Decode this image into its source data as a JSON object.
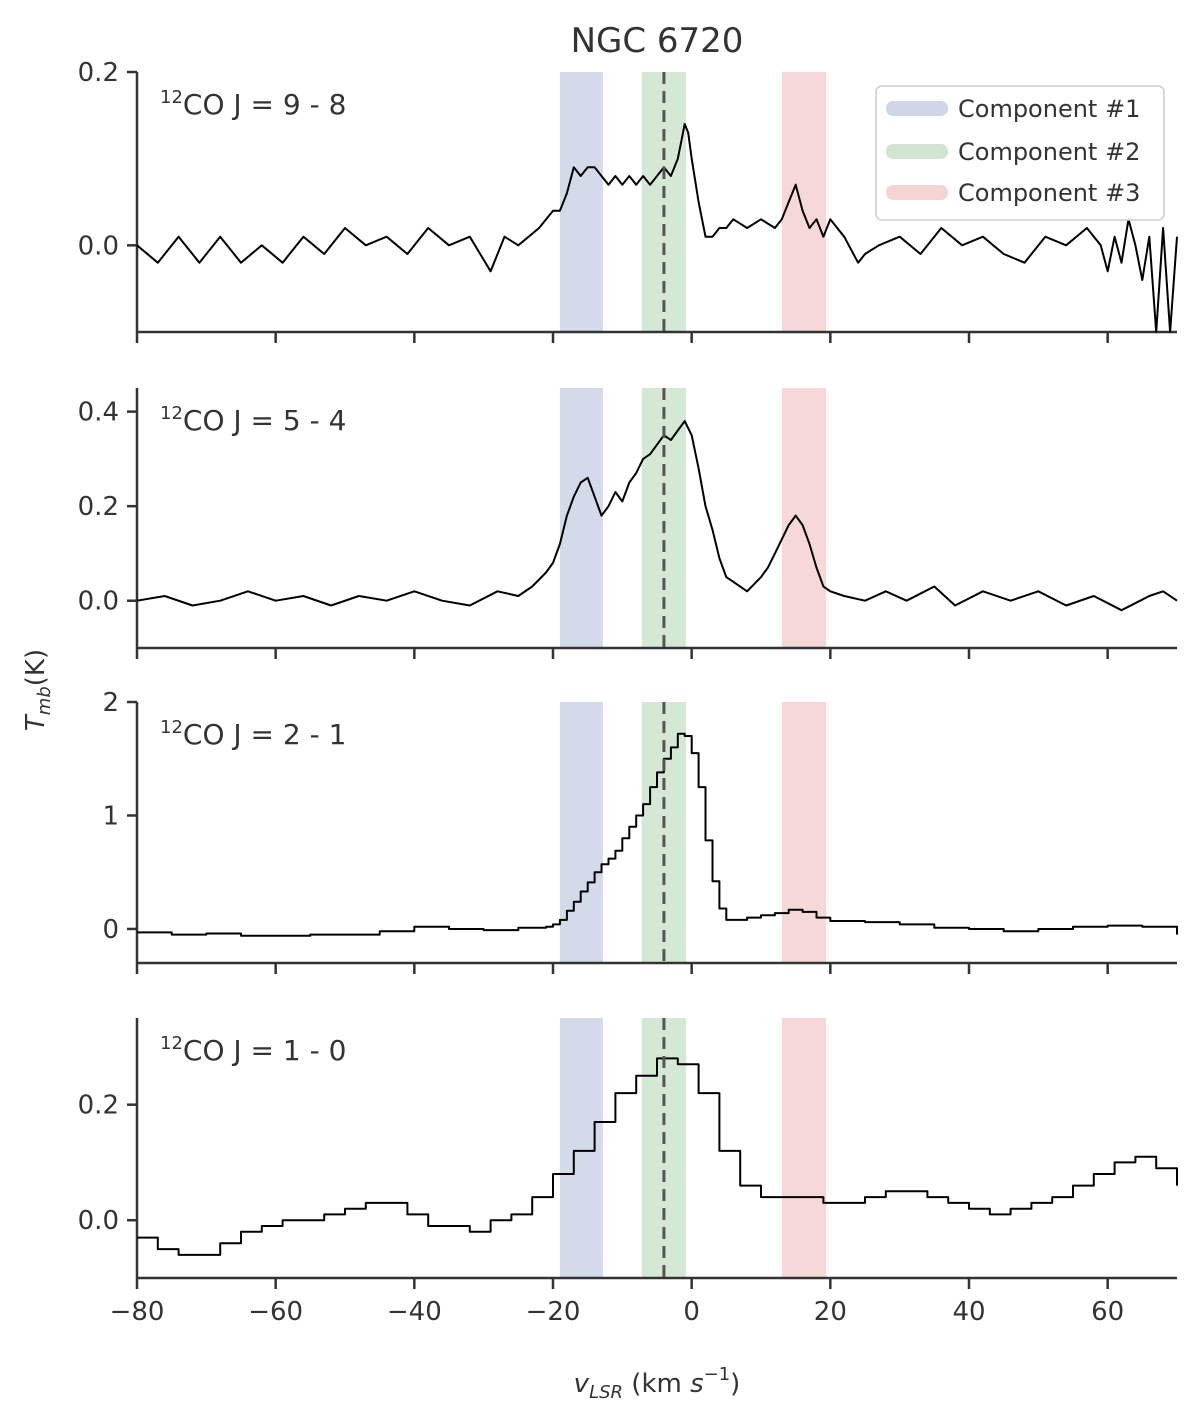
{
  "chart_data": {
    "type": "line",
    "title": "NGC 6720",
    "ylabel": "T_mb(K)",
    "xlabel": "v_LSR (km s^-1)",
    "xlim": [
      -80,
      70
    ],
    "xticks": [
      -80,
      -60,
      -40,
      -20,
      0,
      20,
      40,
      60
    ],
    "xtick_labels": [
      "−80",
      "−60",
      "−40",
      "−20",
      "0",
      "20",
      "40",
      "60"
    ],
    "systemic_velocity": -4,
    "components": [
      {
        "name": "Component #1",
        "range": [
          -19,
          -12.8
        ],
        "color": "#aebbd8"
      },
      {
        "name": "Component #2",
        "range": [
          -7.2,
          -0.8
        ],
        "color": "#b2d6b4"
      },
      {
        "name": "Component #3",
        "range": [
          13,
          19.4
        ],
        "color": "#eeb8b8"
      }
    ],
    "legend": {
      "position": "top-right",
      "entries": [
        "Component #1",
        "Component #2",
        "Component #3"
      ]
    },
    "panels": [
      {
        "line_sup": "12",
        "line_name": "CO J = 9 - 8",
        "ylim": [
          -0.1,
          0.2
        ],
        "yticks": [
          0.0,
          0.2
        ],
        "ytick_labels": [
          "0.0",
          "0.2"
        ],
        "style": "line",
        "series": {
          "name": "12CO J = 9 - 8",
          "x": [
            -80,
            -77,
            -74,
            -71,
            -68,
            -65,
            -62,
            -59,
            -56,
            -53,
            -50,
            -47,
            -44,
            -41,
            -38,
            -35,
            -32,
            -29,
            -27,
            -25,
            -22,
            -20,
            -19,
            -18,
            -17,
            -16,
            -15,
            -14,
            -13,
            -12,
            -11,
            -10,
            -9,
            -8,
            -7,
            -6,
            -5,
            -4,
            -3,
            -2,
            -1.5,
            -1,
            -0.5,
            0,
            1,
            2,
            3,
            4,
            5,
            6,
            8,
            10,
            12,
            13,
            14,
            15,
            16,
            17,
            18,
            19,
            20,
            22,
            24,
            25,
            27,
            30,
            33,
            36,
            39,
            42,
            45,
            48,
            51,
            54,
            57,
            59,
            60,
            61,
            62,
            63,
            64,
            65,
            66,
            67,
            68,
            69,
            70
          ],
          "y": [
            0.0,
            -0.02,
            0.01,
            -0.02,
            0.01,
            -0.02,
            0.0,
            -0.02,
            0.01,
            -0.01,
            0.02,
            0.0,
            0.01,
            -0.01,
            0.02,
            0.0,
            0.01,
            -0.03,
            0.01,
            0.0,
            0.02,
            0.04,
            0.04,
            0.06,
            0.09,
            0.08,
            0.09,
            0.09,
            0.08,
            0.07,
            0.08,
            0.07,
            0.08,
            0.07,
            0.08,
            0.07,
            0.08,
            0.09,
            0.08,
            0.1,
            0.12,
            0.14,
            0.13,
            0.1,
            0.05,
            0.01,
            0.01,
            0.02,
            0.02,
            0.03,
            0.02,
            0.03,
            0.02,
            0.03,
            0.05,
            0.07,
            0.04,
            0.02,
            0.03,
            0.01,
            0.03,
            0.01,
            -0.02,
            -0.01,
            0.0,
            0.01,
            -0.01,
            0.02,
            0.0,
            0.01,
            -0.01,
            -0.02,
            0.01,
            0.0,
            0.02,
            0.0,
            -0.03,
            0.01,
            -0.02,
            0.03,
            0.0,
            -0.04,
            0.01,
            -0.1,
            0.02,
            -0.1,
            0.01
          ]
        }
      },
      {
        "line_sup": "12",
        "line_name": "CO J = 5 - 4",
        "ylim": [
          -0.1,
          0.45
        ],
        "yticks": [
          0.0,
          0.2,
          0.4
        ],
        "ytick_labels": [
          "0.0",
          "0.2",
          "0.4"
        ],
        "style": "line",
        "series": {
          "name": "12CO J = 5 - 4",
          "x": [
            -80,
            -76,
            -72,
            -68,
            -64,
            -60,
            -56,
            -52,
            -48,
            -44,
            -40,
            -36,
            -32,
            -28,
            -25,
            -23,
            -21,
            -20,
            -19,
            -18,
            -17,
            -16,
            -15,
            -14,
            -13,
            -12,
            -11,
            -10,
            -9,
            -8,
            -7,
            -6,
            -5,
            -4,
            -3,
            -2,
            -1,
            0,
            1,
            2,
            3,
            4,
            5,
            6,
            8,
            10,
            11,
            12,
            13,
            14,
            15,
            16,
            17,
            18,
            19,
            20,
            22,
            25,
            28,
            31,
            35,
            38,
            42,
            46,
            50,
            54,
            58,
            62,
            66,
            68,
            70
          ],
          "y": [
            0.0,
            0.01,
            -0.01,
            0.0,
            0.02,
            0.0,
            0.01,
            -0.01,
            0.01,
            0.0,
            0.02,
            0.0,
            -0.01,
            0.02,
            0.01,
            0.03,
            0.06,
            0.08,
            0.12,
            0.18,
            0.22,
            0.25,
            0.26,
            0.22,
            0.18,
            0.2,
            0.23,
            0.21,
            0.25,
            0.27,
            0.3,
            0.31,
            0.33,
            0.35,
            0.34,
            0.36,
            0.38,
            0.35,
            0.28,
            0.2,
            0.15,
            0.09,
            0.05,
            0.04,
            0.02,
            0.05,
            0.07,
            0.1,
            0.13,
            0.16,
            0.18,
            0.16,
            0.12,
            0.07,
            0.03,
            0.02,
            0.01,
            0.0,
            0.02,
            0.0,
            0.03,
            -0.01,
            0.02,
            0.0,
            0.02,
            -0.01,
            0.01,
            -0.02,
            0.01,
            0.02,
            0.0
          ]
        }
      },
      {
        "line_sup": "12",
        "line_name": "CO J = 2 - 1",
        "ylim": [
          -0.3,
          2.0
        ],
        "yticks": [
          0,
          1,
          2
        ],
        "ytick_labels": [
          "0",
          "1",
          "2"
        ],
        "style": "step",
        "series": {
          "name": "12CO J = 2 - 1",
          "x": [
            -80,
            -75,
            -70,
            -65,
            -60,
            -55,
            -50,
            -45,
            -40,
            -35,
            -30,
            -25,
            -21,
            -20,
            -19,
            -18,
            -17,
            -16,
            -15,
            -14,
            -13,
            -12,
            -11,
            -10,
            -9,
            -8,
            -7,
            -6,
            -5,
            -4,
            -3,
            -2,
            -1,
            0,
            1,
            2,
            3,
            4,
            5,
            6,
            8,
            10,
            12,
            14,
            16,
            18,
            20,
            25,
            30,
            35,
            40,
            45,
            50,
            55,
            60,
            65,
            70
          ],
          "y": [
            -0.03,
            -0.05,
            -0.04,
            -0.06,
            -0.06,
            -0.05,
            -0.05,
            -0.02,
            0.02,
            0.0,
            -0.01,
            0.01,
            0.02,
            0.04,
            0.08,
            0.16,
            0.24,
            0.33,
            0.41,
            0.5,
            0.57,
            0.62,
            0.69,
            0.8,
            0.9,
            1.0,
            1.1,
            1.25,
            1.38,
            1.5,
            1.6,
            1.72,
            1.7,
            1.55,
            1.25,
            0.78,
            0.42,
            0.18,
            0.08,
            0.08,
            0.1,
            0.12,
            0.14,
            0.17,
            0.15,
            0.1,
            0.07,
            0.06,
            0.04,
            0.01,
            0.0,
            -0.02,
            0.0,
            0.02,
            0.03,
            0.02,
            -0.05
          ]
        }
      },
      {
        "line_sup": "12",
        "line_name": "CO J = 1 - 0",
        "ylim": [
          -0.1,
          0.35
        ],
        "yticks": [
          0.0,
          0.2
        ],
        "ytick_labels": [
          "0.0",
          "0.2"
        ],
        "style": "step",
        "series": {
          "name": "12CO J = 1 - 0",
          "x": [
            -80,
            -77,
            -74,
            -71,
            -68,
            -65,
            -62,
            -59,
            -56,
            -53,
            -50,
            -47,
            -44,
            -41,
            -38,
            -35,
            -32,
            -29,
            -26,
            -23,
            -20,
            -17,
            -14,
            -11,
            -8,
            -5,
            -2,
            1,
            4,
            7,
            10,
            13,
            16,
            19,
            22,
            25,
            28,
            31,
            34,
            37,
            40,
            43,
            46,
            49,
            52,
            55,
            58,
            61,
            64,
            67,
            70
          ],
          "y": [
            -0.03,
            -0.05,
            -0.06,
            -0.06,
            -0.04,
            -0.02,
            -0.01,
            0.0,
            0.0,
            0.01,
            0.02,
            0.03,
            0.03,
            0.01,
            -0.01,
            -0.01,
            -0.02,
            0.0,
            0.01,
            0.04,
            0.08,
            0.12,
            0.17,
            0.22,
            0.25,
            0.28,
            0.27,
            0.22,
            0.12,
            0.06,
            0.04,
            0.04,
            0.04,
            0.03,
            0.03,
            0.04,
            0.05,
            0.05,
            0.04,
            0.03,
            0.02,
            0.01,
            0.02,
            0.03,
            0.04,
            0.06,
            0.08,
            0.1,
            0.11,
            0.09,
            0.06
          ]
        }
      }
    ]
  }
}
